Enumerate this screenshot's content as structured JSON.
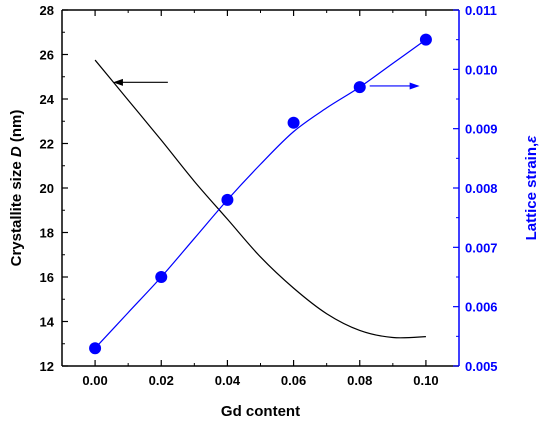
{
  "chart_data": {
    "type": "line",
    "xlabel": "Gd content",
    "ylabel_left": {
      "text": "Crystallite size ",
      "italic": "D",
      "suffix": " (nm)"
    },
    "ylabel_right": {
      "text": "Lattice strain,",
      "italic": "ε"
    },
    "xlim": [
      -0.01,
      0.11
    ],
    "ylim_left": [
      12,
      28
    ],
    "ylim_right": [
      0.005,
      0.011
    ],
    "x_ticks": [
      "0.00",
      "0.02",
      "0.04",
      "0.06",
      "0.08",
      "0.10"
    ],
    "x_tick_values": [
      0.0,
      0.02,
      0.04,
      0.06,
      0.08,
      0.1
    ],
    "y_left_ticks": [
      "12",
      "14",
      "16",
      "18",
      "20",
      "22",
      "24",
      "26",
      "28"
    ],
    "y_left_tick_values": [
      12,
      14,
      16,
      18,
      20,
      22,
      24,
      26,
      28
    ],
    "y_right_ticks": [
      "0.005",
      "0.006",
      "0.007",
      "0.008",
      "0.009",
      "0.010",
      "0.011"
    ],
    "y_right_tick_values": [
      0.005,
      0.006,
      0.007,
      0.008,
      0.009,
      0.01,
      0.011
    ],
    "grid": false,
    "series": [
      {
        "axis": "left",
        "style": "line",
        "color": "#000000",
        "x": [
          0.0,
          0.01,
          0.02,
          0.03,
          0.04,
          0.05,
          0.06,
          0.07,
          0.08,
          0.09,
          0.1
        ],
        "values": [
          25.75,
          23.95,
          22.15,
          20.3,
          18.6,
          16.9,
          15.5,
          14.35,
          13.6,
          13.28,
          13.32
        ]
      },
      {
        "axis": "right",
        "style": "scatter",
        "color": "#0000ff",
        "x": [
          0.0,
          0.02,
          0.04,
          0.06,
          0.08,
          0.1
        ],
        "values": [
          0.0053,
          0.0065,
          0.0078,
          0.0091,
          0.0097,
          0.0105
        ]
      },
      {
        "axis": "right",
        "style": "line",
        "color": "#0000ff",
        "x": [
          0.0,
          0.01,
          0.02,
          0.03,
          0.04,
          0.05,
          0.06,
          0.07,
          0.08,
          0.09,
          0.1
        ],
        "values": [
          0.0053,
          0.0059,
          0.0065,
          0.00715,
          0.0078,
          0.0084,
          0.00895,
          0.00935,
          0.0097,
          0.0101,
          0.0105
        ]
      }
    ],
    "annotations": [
      {
        "type": "arrow",
        "direction": "left",
        "color": "#000000",
        "x": 0.006,
        "y": 24.75,
        "length_x": 0.016,
        "axis": "left"
      },
      {
        "type": "arrow",
        "direction": "right",
        "color": "#0000ff",
        "x": 0.083,
        "y": 0.00972,
        "length_x": 0.0145,
        "axis": "right"
      }
    ],
    "colors": {
      "left_axis": "#000000",
      "right_axis": "#0000ff"
    }
  }
}
